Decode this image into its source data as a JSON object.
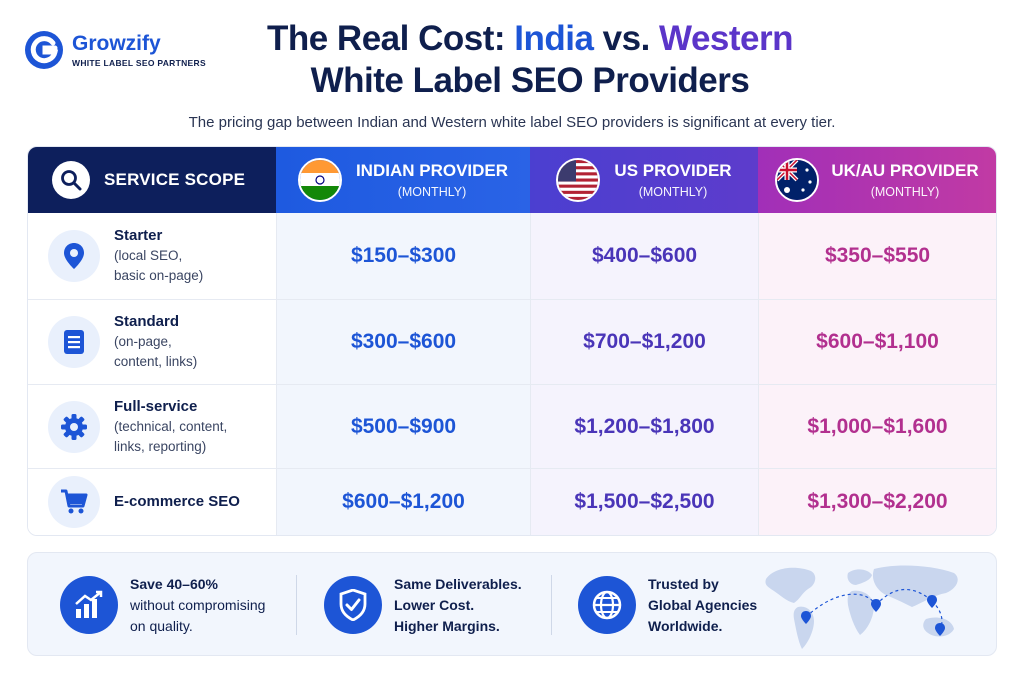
{
  "brand": {
    "name": "Growzify",
    "tagline": "WHITE LABEL SEO PARTNERS",
    "color": "#1d55d6"
  },
  "title": {
    "part1": "The Real Cost: ",
    "india": "India",
    "vs": " vs. ",
    "western": "Western",
    "line2": "White Label SEO Providers"
  },
  "subtitle": "The pricing gap between Indian and Western white label SEO providers is significant at every tier.",
  "table": {
    "header": {
      "scope": "SERVICE SCOPE",
      "scope_icon": "search-icon",
      "india": {
        "label": "INDIAN PROVIDER",
        "sub": "(MONTHLY)",
        "flag": "india-flag",
        "color": "#1e5ae0"
      },
      "us": {
        "label": "US PROVIDER",
        "sub": "(MONTHLY)",
        "flag": "us-flag",
        "color": "#4b3fd0"
      },
      "uk": {
        "label": "UK/AU PROVIDER",
        "sub": "(MONTHLY)",
        "flag": "australia-flag",
        "color": "#b2308f"
      }
    },
    "rows": [
      {
        "icon": "location-pin-icon",
        "title": "Starter",
        "desc1": "(local SEO,",
        "desc2": "basic on-page)",
        "desc3": "",
        "india": "$150–$300",
        "us": "$400–$600",
        "uk": "$350–$550"
      },
      {
        "icon": "document-icon",
        "title": "Standard",
        "desc1": "(on-page,",
        "desc2": "content, links)",
        "desc3": "",
        "india": "$300–$600",
        "us": "$700–$1,200",
        "uk": "$600–$1,100"
      },
      {
        "icon": "gear-icon",
        "title": "Full-service",
        "desc1": "(technical, content,",
        "desc2": "links, reporting)",
        "desc3": "",
        "india": "$500–$900",
        "us": "$1,200–$1,800",
        "uk": "$1,000–$1,600"
      },
      {
        "icon": "cart-icon",
        "title": "E-commerce SEO",
        "desc1": "",
        "desc2": "",
        "desc3": "",
        "india": "$600–$1,200",
        "us": "$1,500–$2,500",
        "uk": "$1,300–$2,200"
      }
    ]
  },
  "features": [
    {
      "icon": "growth-chart-icon",
      "line1": "Save 40–60%",
      "line2": "without compromising",
      "line3": "on quality."
    },
    {
      "icon": "shield-check-icon",
      "line1": "Same Deliverables.",
      "line2": "Lower Cost.",
      "line3": "Higher Margins."
    },
    {
      "icon": "globe-icon",
      "line1": "Trusted by",
      "line2": "Global Agencies",
      "line3": "Worldwide."
    }
  ],
  "map_icon": "world-map-icon"
}
